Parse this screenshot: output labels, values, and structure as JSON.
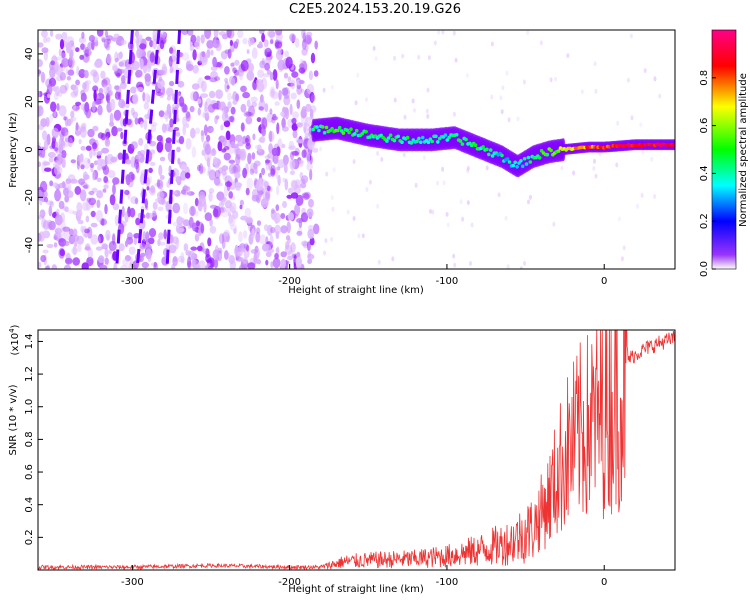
{
  "title": "C2E5.2024.153.20.19.G26",
  "colors": {
    "snr_line": "#ee3333",
    "frame": "#000000",
    "colormap": [
      "#ffffff",
      "#8800ff",
      "#0000ff",
      "#00ffff",
      "#00ff00",
      "#ffff00",
      "#ff0000",
      "#ff0088"
    ]
  },
  "chart_data": [
    {
      "type": "heatmap",
      "title": "C2E5.2024.153.20.19.G26",
      "xlabel": "Height of straight line (km)",
      "ylabel": "Frequency (Hz)",
      "xlim": [
        -360,
        45
      ],
      "ylim": [
        -50,
        50
      ],
      "x_ticks": [
        -300,
        -200,
        -100,
        0
      ],
      "x_tick_labels": [
        "-300",
        "-200",
        "-100",
        "0"
      ],
      "y_ticks": [
        -40,
        -20,
        0,
        20,
        40
      ],
      "y_tick_labels": [
        "-40",
        "-20",
        "0",
        "20",
        "40"
      ],
      "colorbar": {
        "label": "Normalized spectral amplitude",
        "range": [
          0,
          1
        ],
        "ticks": [
          0.0,
          0.2,
          0.4,
          0.6,
          0.8
        ],
        "tick_labels": [
          "0.0",
          "0.2",
          "0.4",
          "0.6",
          "0.8"
        ]
      },
      "ridge": {
        "description_x": [
          -185,
          -170,
          -150,
          -130,
          -110,
          -95,
          -80,
          -65,
          -55,
          -45,
          -35,
          -25,
          -10,
          0,
          20,
          45
        ],
        "frequency": [
          8,
          9,
          6,
          4,
          4,
          5,
          1,
          -3,
          -7,
          -3,
          -1,
          0,
          1,
          1,
          2,
          2
        ],
        "amplitude": [
          0.5,
          0.55,
          0.5,
          0.5,
          0.45,
          0.5,
          0.5,
          0.45,
          0.4,
          0.5,
          0.6,
          0.7,
          0.8,
          0.85,
          0.9,
          0.9
        ]
      },
      "grid": false
    },
    {
      "type": "line",
      "xlabel": "Height of straight line (km)",
      "ylabel": "SNR (10 * v/v)",
      "y_multiplier": "(x10^4)",
      "xlim": [
        -360,
        45
      ],
      "ylim": [
        0,
        1.47
      ],
      "x_ticks": [
        -300,
        -200,
        -100,
        0
      ],
      "x_tick_labels": [
        "-300",
        "-200",
        "-100",
        "0"
      ],
      "y_ticks": [
        0.2,
        0.4,
        0.6,
        0.8,
        1.0,
        1.2,
        1.4
      ],
      "y_tick_labels": [
        "0.2",
        "0.4",
        "0.6",
        "0.8",
        "1.0",
        "1.2",
        "1.4"
      ],
      "series": [
        {
          "x": [
            -360,
            -300,
            -250,
            -200,
            -180,
            -165,
            -150,
            -120,
            -100,
            -80,
            -60,
            -45,
            -35,
            -25,
            -15,
            -5,
            5,
            15,
            25,
            35,
            45
          ],
          "y": [
            0.02,
            0.02,
            0.03,
            0.02,
            0.02,
            0.06,
            0.07,
            0.08,
            0.1,
            0.14,
            0.2,
            0.3,
            0.5,
            0.8,
            0.95,
            1.05,
            1.18,
            1.3,
            1.36,
            1.4,
            1.43
          ]
        }
      ],
      "grid": false
    }
  ]
}
